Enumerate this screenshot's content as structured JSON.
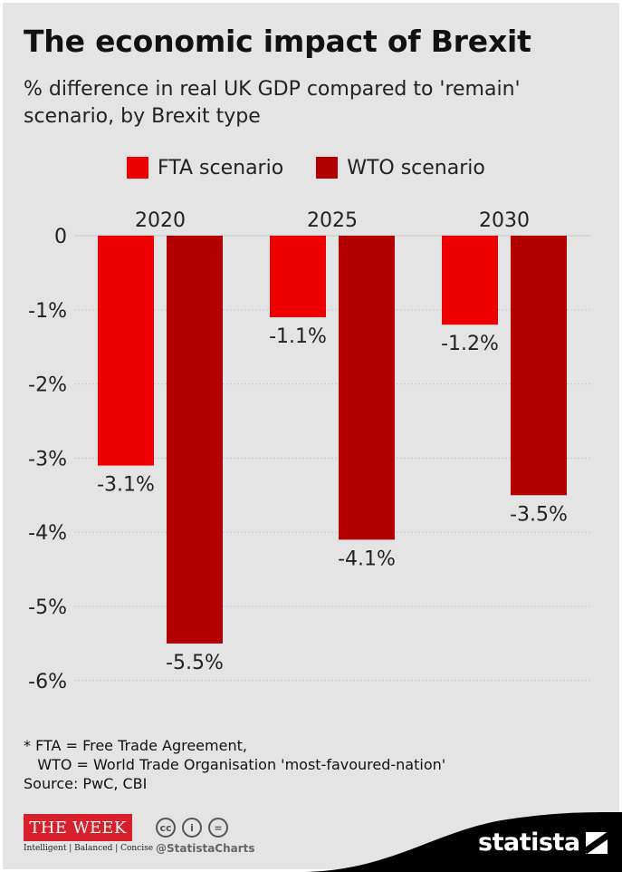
{
  "header": {
    "title": "The economic impact of Brexit",
    "subtitle": "% difference in real UK GDP compared to 'remain' scenario, by Brexit type"
  },
  "colors": {
    "fta": "#ee0000",
    "wto": "#b30000",
    "gridline": "#c8c8c8",
    "background": "#e4e4e4"
  },
  "chart_data": {
    "type": "bar",
    "title": "The economic impact of Brexit",
    "subtitle": "% difference in real UK GDP compared to 'remain' scenario, by Brexit type",
    "categories": [
      "2020",
      "2025",
      "2030"
    ],
    "category_axis_position": "top",
    "series": [
      {
        "name": "FTA scenario",
        "values": [
          -3.1,
          -1.1,
          -1.2
        ],
        "labels": [
          "-3.1%",
          "-1.1%",
          "-1.2%"
        ],
        "color": "#ee0000"
      },
      {
        "name": "WTO scenario",
        "values": [
          -5.5,
          -4.1,
          -3.5
        ],
        "labels": [
          "-5.5%",
          "-4.1%",
          "-3.5%"
        ],
        "color": "#b30000"
      }
    ],
    "yticks": [
      0,
      -1,
      -2,
      -3,
      -4,
      -5,
      -6
    ],
    "ytick_labels": [
      "0",
      "-1%",
      "-2%",
      "-3%",
      "-4%",
      "-5%",
      "-6%"
    ],
    "ylim": [
      -6,
      0
    ],
    "xlabel": "",
    "ylabel": "",
    "grid": true,
    "legend_position": "top"
  },
  "footnote": {
    "lines": [
      "* FTA = Free Trade Agreement,",
      "   WTO = World Trade Organisation 'most-favoured-nation'",
      "Source: PwC, CBI"
    ]
  },
  "branding": {
    "publisher_logo_text": "THE WEEK",
    "publisher_tagline": "Intelligent | Balanced | Concise",
    "cc_icons": [
      "cc",
      "i",
      "="
    ],
    "handle": "@StatistaCharts",
    "statista_text": "statista"
  }
}
